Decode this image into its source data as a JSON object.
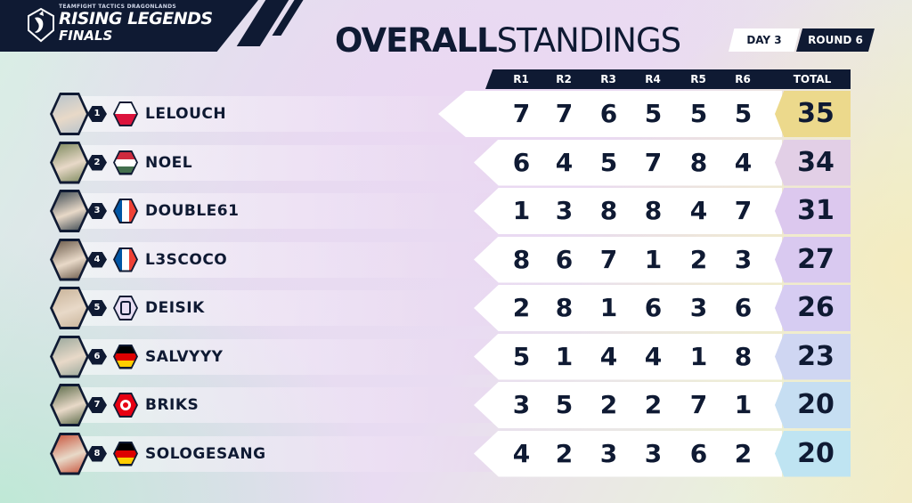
{
  "brand": {
    "game": "TEAMFIGHT TACTICS DRAGONLANDS",
    "event": "RISING LEGENDS",
    "stage": "FINALS"
  },
  "title": {
    "bold": "OVERALL",
    "light": "STANDINGS"
  },
  "badges": {
    "day": "DAY 3",
    "round": "ROUND 6"
  },
  "columns": [
    "R1",
    "R2",
    "R3",
    "R4",
    "R5",
    "R6",
    "TOTAL"
  ],
  "colors": {
    "navy": "#0f1a33",
    "total_gold": "#ecd98c",
    "total_lilac": "#dcc8ee",
    "total_blue": "#bfe0f2"
  },
  "players": [
    {
      "rank": "1",
      "name": "LELOUCH",
      "flag": "poland",
      "scores": [
        "7",
        "7",
        "6",
        "5",
        "5",
        "5"
      ],
      "total": "35",
      "total_color": "#ecd98c"
    },
    {
      "rank": "2",
      "name": "NOEL",
      "flag": "hungary",
      "scores": [
        "6",
        "4",
        "5",
        "7",
        "8",
        "4"
      ],
      "total": "34",
      "total_color": "#e2cfe6"
    },
    {
      "rank": "3",
      "name": "DOUBLE61",
      "flag": "france",
      "scores": [
        "1",
        "3",
        "8",
        "8",
        "4",
        "7"
      ],
      "total": "31",
      "total_color": "#dcc8ee"
    },
    {
      "rank": "4",
      "name": "L3SCOCO",
      "flag": "france",
      "scores": [
        "8",
        "6",
        "7",
        "1",
        "2",
        "3"
      ],
      "total": "27",
      "total_color": "#d9c9f0"
    },
    {
      "rank": "5",
      "name": "DEISIK",
      "flag": "emblem",
      "scores": [
        "2",
        "8",
        "1",
        "6",
        "3",
        "6"
      ],
      "total": "26",
      "total_color": "#d6ccf2"
    },
    {
      "rank": "6",
      "name": "SALVYYY",
      "flag": "germany",
      "scores": [
        "5",
        "1",
        "4",
        "4",
        "1",
        "8"
      ],
      "total": "23",
      "total_color": "#cfd6f2"
    },
    {
      "rank": "7",
      "name": "BRIKS",
      "flag": "tunisia",
      "scores": [
        "3",
        "5",
        "2",
        "2",
        "7",
        "1"
      ],
      "total": "20",
      "total_color": "#c6def2"
    },
    {
      "rank": "8",
      "name": "SOLOGESANG",
      "flag": "germany",
      "scores": [
        "4",
        "2",
        "3",
        "3",
        "6",
        "2"
      ],
      "total": "20",
      "total_color": "#bfe4f2"
    }
  ]
}
